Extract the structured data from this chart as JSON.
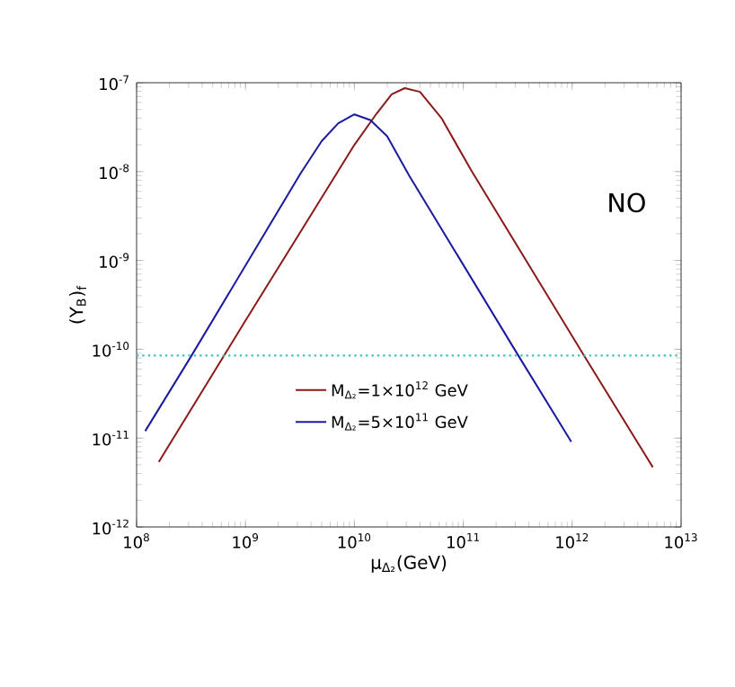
{
  "chart_data": {
    "type": "line",
    "xlabel": "μ$_{Δ₂}$(GeV)",
    "ylabel": "(Y$_{B}$)$_{f}$",
    "log": "xy",
    "xlim": [
      100000000.0,
      10000000000000.0
    ],
    "ylim": [
      1e-12,
      1e-07
    ],
    "xticks": [
      {
        "value": 100000000.0,
        "label": "10$^{8}$"
      },
      {
        "value": 1000000000.0,
        "label": "10$^{9}$"
      },
      {
        "value": 10000000000.0,
        "label": "10$^{10}$"
      },
      {
        "value": 100000000000.0,
        "label": "10$^{11}$"
      },
      {
        "value": 1000000000000.0,
        "label": "10$^{12}$"
      },
      {
        "value": 10000000000000.0,
        "label": "10$^{13}$"
      }
    ],
    "yticks": [
      {
        "value": 1e-12,
        "label": "10$^{-12}$"
      },
      {
        "value": 1e-11,
        "label": "10$^{-11}$"
      },
      {
        "value": 1e-10,
        "label": "10$^{-10}$"
      },
      {
        "value": 1e-09,
        "label": "10$^{-9}$"
      },
      {
        "value": 1e-08,
        "label": "10$^{-8}$"
      },
      {
        "value": 1e-07,
        "label": "10$^{-7}$"
      }
    ],
    "series": [
      {
        "name": "M$_{Δ₂}$=1×10$^{12}$ GeV",
        "color": "#8b1a1a",
        "x": [
          160000000.0,
          1000000000.0,
          10000000000.0,
          16000000000.0,
          22000000000.0,
          29000000000.0,
          40000000000.0,
          63000000000.0,
          120000000000.0,
          1300000000000.0,
          5500000000000.0
        ],
        "values": [
          5.4e-12,
          2.1e-10,
          2e-08,
          4.5e-08,
          7.4e-08,
          8.7e-08,
          7.9e-08,
          4e-08,
          1e-08,
          8.3e-11,
          4.7e-12
        ]
      },
      {
        "name": "M$_{Δ₂}$=5×10$^{11}$ GeV",
        "color": "#1a1aa0",
        "x": [
          120000000.0,
          320000000.0,
          3200000000.0,
          5000000000.0,
          7100000000.0,
          10000000000.0,
          14000000000.0,
          20000000000.0,
          32000000000.0,
          320000000000.0,
          980000000000.0
        ],
        "values": [
          1.2e-11,
          8.5e-11,
          9.5e-09,
          2.2e-08,
          3.5e-08,
          4.4e-08,
          3.8e-08,
          2.5e-08,
          8.9e-09,
          8.5e-11,
          9.1e-12
        ]
      }
    ],
    "ref_lines": [
      {
        "axis": "y",
        "value": 8.5e-11,
        "color": "#40c0c0",
        "line_style": "dotted"
      }
    ],
    "annotations": [
      "NO"
    ],
    "legend": "bottom",
    "marker": "none",
    "line_style": "solid",
    "grid": false
  }
}
